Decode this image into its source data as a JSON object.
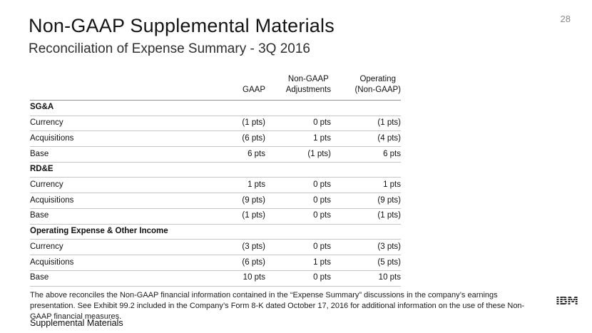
{
  "slide": {
    "title": "Non-GAAP Supplemental Materials",
    "subtitle": "Reconciliation of Expense Summary - 3Q 2016",
    "page_number": "28",
    "footer": "Supplemental Materials",
    "footnote": "The above reconciles the Non-GAAP financial information contained in the “Expense Summary” discussions in the company’s earnings presentation. See Exhibit 99.2 included in the Company’s Form 8-K dated October 17, 2016  for additional information on the use of these Non-GAAP financial measures.",
    "logo": "IBM"
  },
  "table": {
    "columns": [
      "GAAP",
      "Non-GAAP\nAdjustments",
      "Operating\n(Non-GAAP)"
    ],
    "sections": [
      {
        "header": "SG&A",
        "rows": [
          {
            "label": "Currency",
            "gaap": "(1 pts)",
            "adj": "0 pts",
            "op": "(1 pts)"
          },
          {
            "label": "Acquisitions",
            "gaap": "(6 pts)",
            "adj": "1 pts",
            "op": "(4 pts)"
          },
          {
            "label": "Base",
            "gaap": "6 pts",
            "adj": "(1 pts)",
            "op": "6 pts"
          }
        ]
      },
      {
        "header": "RD&E",
        "rows": [
          {
            "label": "Currency",
            "gaap": "1 pts",
            "adj": "0 pts",
            "op": "1 pts"
          },
          {
            "label": "Acquisitions",
            "gaap": "(9 pts)",
            "adj": "0 pts",
            "op": "(9 pts)"
          },
          {
            "label": "Base",
            "gaap": "(1 pts)",
            "adj": "0 pts",
            "op": "(1 pts)"
          }
        ]
      },
      {
        "header": "Operating Expense & Other Income",
        "rows": [
          {
            "label": "Currency",
            "gaap": "(3 pts)",
            "adj": "0 pts",
            "op": "(3 pts)"
          },
          {
            "label": "Acquisitions",
            "gaap": "(6 pts)",
            "adj": "1 pts",
            "op": "(5 pts)"
          },
          {
            "label": "Base",
            "gaap": "10 pts",
            "adj": "0 pts",
            "op": "10 pts"
          }
        ]
      }
    ]
  }
}
